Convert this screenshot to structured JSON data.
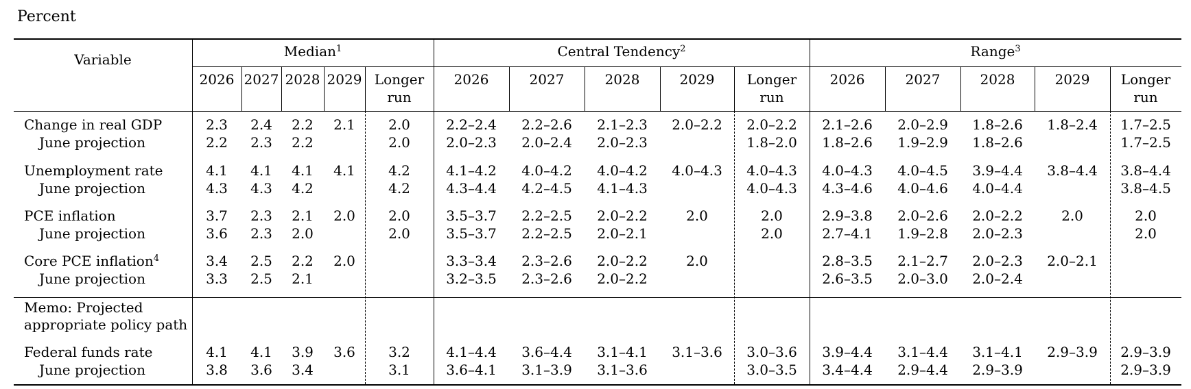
{
  "unit_label": "Percent",
  "header": {
    "variable": "Variable",
    "groups": [
      {
        "label": "Median",
        "note": "1"
      },
      {
        "label": "Central Tendency",
        "note": "2"
      },
      {
        "label": "Range",
        "note": "3"
      }
    ],
    "years": [
      "2026",
      "2027",
      "2028",
      "2029"
    ],
    "longer_run_1": "Longer",
    "longer_run_2": "run"
  },
  "rows": [
    {
      "label": "Change in real GDP",
      "note": "",
      "indent": false,
      "median": [
        "2.3",
        "2.4",
        "2.2",
        "2.1",
        "2.0"
      ],
      "central": [
        "2.2–2.4",
        "2.2–2.6",
        "2.1–2.3",
        "2.0–2.2",
        "2.0–2.2"
      ],
      "range": [
        "2.1–2.6",
        "2.0–2.9",
        "1.8–2.6",
        "1.8–2.4",
        "1.7–2.5"
      ]
    },
    {
      "label": "June projection",
      "note": "",
      "indent": true,
      "median": [
        "2.2",
        "2.3",
        "2.2",
        "",
        "2.0"
      ],
      "central": [
        "2.0–2.3",
        "2.0–2.4",
        "2.0–2.3",
        "",
        "1.8–2.0"
      ],
      "range": [
        "1.8–2.6",
        "1.9–2.9",
        "1.8–2.6",
        "",
        "1.7–2.5"
      ]
    },
    {
      "label": "Unemployment rate",
      "note": "",
      "indent": false,
      "median": [
        "4.1",
        "4.1",
        "4.1",
        "4.1",
        "4.2"
      ],
      "central": [
        "4.1–4.2",
        "4.0–4.2",
        "4.0–4.2",
        "4.0–4.3",
        "4.0–4.3"
      ],
      "range": [
        "4.0–4.3",
        "4.0–4.5",
        "3.9–4.4",
        "3.8–4.4",
        "3.8–4.4"
      ]
    },
    {
      "label": "June projection",
      "note": "",
      "indent": true,
      "median": [
        "4.3",
        "4.3",
        "4.2",
        "",
        "4.2"
      ],
      "central": [
        "4.3–4.4",
        "4.2–4.5",
        "4.1–4.3",
        "",
        "4.0–4.3"
      ],
      "range": [
        "4.3–4.6",
        "4.0–4.6",
        "4.0–4.4",
        "",
        "3.8–4.5"
      ]
    },
    {
      "label": "PCE inflation",
      "note": "",
      "indent": false,
      "median": [
        "3.7",
        "2.3",
        "2.1",
        "2.0",
        "2.0"
      ],
      "central": [
        "3.5–3.7",
        "2.2–2.5",
        "2.0–2.2",
        "2.0",
        "2.0"
      ],
      "range": [
        "2.9–3.8",
        "2.0–2.6",
        "2.0–2.2",
        "2.0",
        "2.0"
      ]
    },
    {
      "label": "June projection",
      "note": "",
      "indent": true,
      "median": [
        "3.6",
        "2.3",
        "2.0",
        "",
        "2.0"
      ],
      "central": [
        "3.5–3.7",
        "2.2–2.5",
        "2.0–2.1",
        "",
        "2.0"
      ],
      "range": [
        "2.7–4.1",
        "1.9–2.8",
        "2.0–2.3",
        "",
        "2.0"
      ]
    },
    {
      "label": "Core PCE inflation",
      "note": "4",
      "indent": false,
      "median": [
        "3.4",
        "2.5",
        "2.2",
        "2.0",
        ""
      ],
      "central": [
        "3.3–3.4",
        "2.3–2.6",
        "2.0–2.2",
        "2.0",
        ""
      ],
      "range": [
        "2.8–3.5",
        "2.1–2.7",
        "2.0–2.3",
        "2.0–2.1",
        ""
      ]
    },
    {
      "label": "June projection",
      "note": "",
      "indent": true,
      "median": [
        "3.3",
        "2.5",
        "2.1",
        "",
        ""
      ],
      "central": [
        "3.2–3.5",
        "2.3–2.6",
        "2.0–2.2",
        "",
        ""
      ],
      "range": [
        "2.6–3.5",
        "2.0–3.0",
        "2.0–2.4",
        "",
        ""
      ]
    },
    {
      "label": "Federal funds rate",
      "note": "",
      "indent": false,
      "median": [
        "4.1",
        "4.1",
        "3.9",
        "3.6",
        "3.2"
      ],
      "central": [
        "4.1–4.4",
        "3.6–4.4",
        "3.1–4.1",
        "3.1–3.6",
        "3.0–3.6"
      ],
      "range": [
        "3.9–4.4",
        "3.1–4.4",
        "3.1–4.1",
        "2.9–3.9",
        "2.9–3.9"
      ]
    },
    {
      "label": "June projection",
      "note": "",
      "indent": true,
      "median": [
        "3.8",
        "3.6",
        "3.4",
        "",
        "3.1"
      ],
      "central": [
        "3.6–4.1",
        "3.1–3.9",
        "3.1–3.6",
        "",
        "3.0–3.5"
      ],
      "range": [
        "3.4–4.4",
        "2.9–4.4",
        "2.9–3.9",
        "",
        "2.9–3.9"
      ]
    }
  ],
  "memo": {
    "line1": "Memo: Projected",
    "line2": "appropriate policy path"
  }
}
